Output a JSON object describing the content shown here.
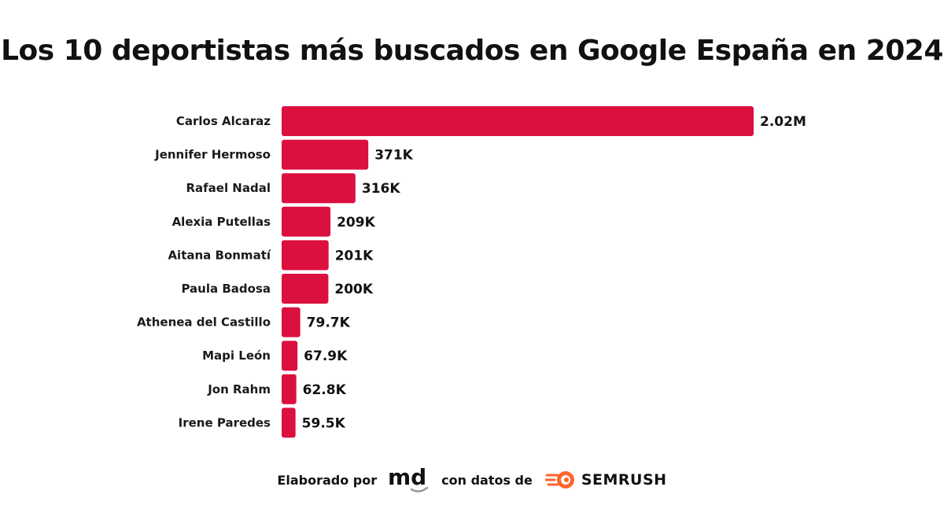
{
  "title": "Los 10 deportistas más buscados en Google España en 2024",
  "chart_data": {
    "type": "bar",
    "orientation": "horizontal",
    "categories": [
      "Carlos Alcaraz",
      "Jennifer Hermoso",
      "Rafael Nadal",
      "Alexia Putellas",
      "Aitana Bonmatí",
      "Paula Badosa",
      "Athenea del Castillo",
      "Mapi León",
      "Jon Rahm",
      "Irene Paredes"
    ],
    "values": [
      2020000,
      371000,
      316000,
      209000,
      201000,
      200000,
      79700,
      67900,
      62800,
      59500
    ],
    "value_labels": [
      "2.02M",
      "371K",
      "316K",
      "209K",
      "201K",
      "200K",
      "79.7K",
      "67.9K",
      "62.8K",
      "59.5K"
    ],
    "title": "Los 10 deportistas más buscados en Google España en 2024",
    "xlabel": "",
    "ylabel": "",
    "grid": false,
    "legend": "none",
    "bar_color": "#DC103F"
  },
  "footer": {
    "made_by": "Elaborado por",
    "md_logo_text": "md",
    "data_from": "con datos de",
    "semrush_text": "SEMRUSH"
  },
  "colors": {
    "bar": "#DC103F",
    "semrush_orange": "#FF642D",
    "text": "#111111"
  }
}
